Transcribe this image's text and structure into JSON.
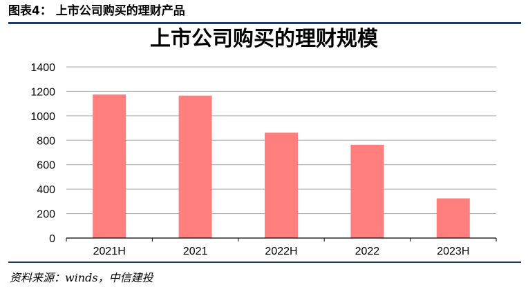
{
  "figure_label": "图表4：  上市公司购买的理财产品",
  "source_note": "资料来源：winds，中信建投",
  "colors": {
    "bar": "#ff7f7f",
    "rule": "#1f3864",
    "grid": "#a6a6a6",
    "axis": "#000000"
  },
  "chart_data": {
    "type": "bar",
    "title": "上市公司购买的理财规模",
    "xlabel": "",
    "ylabel": "",
    "categories": [
      "2021H",
      "2021",
      "2022H",
      "2022",
      "2023H"
    ],
    "values": [
      1175,
      1165,
      862,
      763,
      325
    ],
    "ylim": [
      0,
      1400
    ],
    "yticks": [
      0,
      200,
      400,
      600,
      800,
      1000,
      1200,
      1400
    ],
    "ytick_labels": [
      "0",
      "200",
      "400",
      "600",
      "800",
      "1000",
      "1200",
      "1400"
    ],
    "grid": true,
    "legend": "none"
  }
}
